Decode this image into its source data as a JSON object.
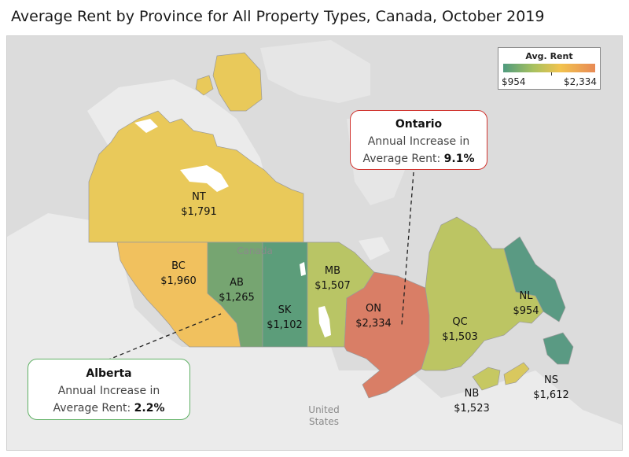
{
  "title": "Average Rent by Province for All Property Types, Canada, October 2019",
  "legend": {
    "title": "Avg. Rent",
    "min_label": "$954",
    "max_label": "$2,334",
    "colors": [
      "#4e9a7e",
      "#a8c15f",
      "#f2c34e",
      "#e88a55"
    ]
  },
  "basemap_labels": {
    "canada": "Canada",
    "united_states_line1": "United",
    "united_states_line2": "States"
  },
  "provinces": [
    {
      "code": "NT",
      "rent": "$1,791",
      "color": "#e9c95a"
    },
    {
      "code": "BC",
      "rent": "$1,960",
      "color": "#f1c15e"
    },
    {
      "code": "AB",
      "rent": "$1,265",
      "color": "#76a571"
    },
    {
      "code": "SK",
      "rent": "$1,102",
      "color": "#5c9d7a"
    },
    {
      "code": "MB",
      "rent": "$1,507",
      "color": "#b9c565"
    },
    {
      "code": "ON",
      "rent": "$2,334",
      "color": "#d97e66"
    },
    {
      "code": "QC",
      "rent": "$1,503",
      "color": "#bcc563"
    },
    {
      "code": "NL",
      "rent": "$954",
      "color": "#5a9a83"
    },
    {
      "code": "NB",
      "rent": "$1,523",
      "color": "#c6c862"
    },
    {
      "code": "NS",
      "rent": "$1,612",
      "color": "#d9c85e"
    }
  ],
  "callouts": {
    "ontario": {
      "name": "Ontario",
      "line1": "Annual Increase in",
      "line2_prefix": "Average Rent:",
      "value": "9.1%"
    },
    "alberta": {
      "name": "Alberta",
      "line1": "Annual Increase in",
      "line2_prefix": "Average Rent:",
      "value": "2.2%"
    }
  }
}
